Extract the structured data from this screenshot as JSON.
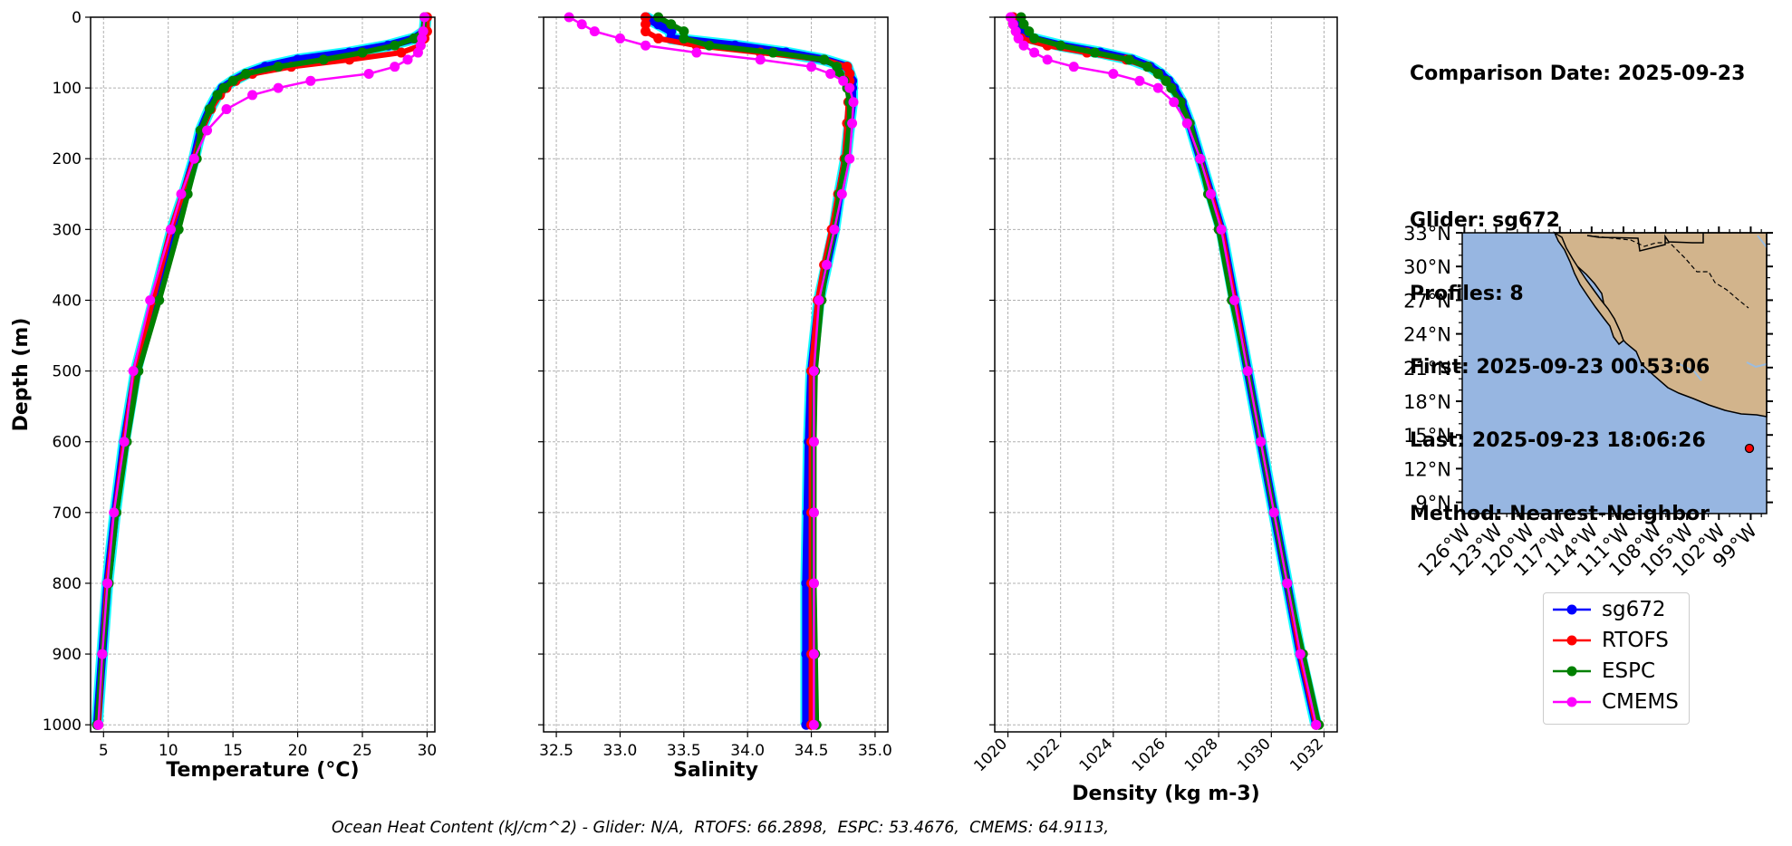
{
  "info": {
    "comparison_date": "Comparison Date: 2025-09-23",
    "glider": "Glider: sg672",
    "profiles": "Profiles: 8",
    "first": "First: 2025-09-23 00:53:06",
    "last": "Last: 2025-09-23 18:06:26",
    "method": "Method: Nearest-Neighbor"
  },
  "footer": "Ocean Heat Content (kJ/cm^2) - Glider: N/A,  RTOFS: 66.2898,  ESPC: 53.4676,  CMEMS: 64.9113,",
  "colors": {
    "sg672": "#0000ff",
    "RTOFS": "#ff0000",
    "ESPC": "#008000",
    "CMEMS": "#ff00ff",
    "glider_cyan": "#00ffff",
    "ocean": "#97b6e1",
    "land": "#d2b48c"
  },
  "map": {
    "lat_labels": [
      "33°N",
      "30°N",
      "27°N",
      "24°N",
      "21°N",
      "18°N",
      "15°N",
      "12°N",
      "9°N"
    ],
    "lon_labels": [
      "126°W",
      "123°W",
      "120°W",
      "117°W",
      "114°W",
      "111°W",
      "108°W",
      "105°W",
      "102°W",
      "99°W"
    ],
    "lat_range": [
      8,
      33
    ],
    "lon_range": [
      -126.2,
      -97.5
    ],
    "glider_position": {
      "lon": -99.2,
      "lat": 14.2
    }
  },
  "chart_data": [
    {
      "type": "line",
      "xlabel": "Temperature (°C)",
      "ylabel": "Depth (m)",
      "xlim": [
        4,
        30.6
      ],
      "ylim": [
        1010,
        0
      ],
      "xticks": [
        "5",
        "10",
        "15",
        "20",
        "25",
        "30"
      ],
      "yticks": [
        "0",
        "100",
        "200",
        "300",
        "400",
        "500",
        "600",
        "700",
        "800",
        "900",
        "1000"
      ],
      "grid": true,
      "depth": [
        0,
        20,
        30,
        40,
        50,
        60,
        70,
        80,
        90,
        100,
        110,
        130,
        160,
        200,
        250,
        300,
        400,
        500,
        600,
        700,
        800,
        900,
        1000
      ],
      "series": [
        {
          "name": "sg672",
          "values": [
            29.9,
            29.8,
            29.0,
            27.0,
            24.0,
            20.0,
            17.5,
            16.0,
            15.0,
            14.2,
            13.8,
            13.2,
            12.5,
            12.0,
            11.2,
            10.3,
            8.9,
            7.5,
            6.6,
            5.9,
            5.3,
            4.9,
            4.5
          ]
        },
        {
          "name": "RTOFS",
          "values": [
            30.0,
            30.0,
            29.8,
            29.5,
            28.0,
            24.0,
            19.5,
            16.5,
            15.2,
            14.5,
            14.0,
            13.3,
            12.6,
            12.0,
            11.1,
            10.2,
            8.8,
            7.4,
            6.6,
            5.9,
            5.3,
            4.9,
            4.6
          ]
        },
        {
          "name": "ESPC",
          "values": [
            29.8,
            29.7,
            29.0,
            27.5,
            25.0,
            22.0,
            18.5,
            16.0,
            15.0,
            14.3,
            13.8,
            13.2,
            12.5,
            12.2,
            11.5,
            10.8,
            9.3,
            7.7,
            6.8,
            6.0,
            5.4,
            4.9,
            4.5
          ]
        },
        {
          "name": "CMEMS",
          "values": [
            29.8,
            29.7,
            29.6,
            29.5,
            29.3,
            28.5,
            27.5,
            25.5,
            21.0,
            18.5,
            16.5,
            14.5,
            13.0,
            12.0,
            11.0,
            10.2,
            8.6,
            7.3,
            6.6,
            5.8,
            5.3,
            4.9,
            4.6
          ]
        }
      ]
    },
    {
      "type": "line",
      "xlabel": "Salinity",
      "ylabel": "",
      "xlim": [
        32.4,
        35.1
      ],
      "ylim": [
        1010,
        0
      ],
      "xticks": [
        "32.5",
        "33.0",
        "33.5",
        "34.0",
        "34.5",
        "35.0"
      ],
      "yticks": [
        "0",
        "100",
        "200",
        "300",
        "400",
        "500",
        "600",
        "700",
        "800",
        "900",
        "1000"
      ],
      "grid": true,
      "depth": [
        0,
        10,
        20,
        30,
        40,
        50,
        60,
        70,
        80,
        90,
        100,
        120,
        150,
        200,
        250,
        300,
        350,
        400,
        500,
        600,
        700,
        800,
        900,
        1000
      ],
      "series": [
        {
          "name": "sg672",
          "values": [
            33.2,
            33.3,
            33.4,
            33.4,
            33.9,
            34.3,
            34.6,
            34.78,
            34.8,
            34.82,
            34.82,
            34.82,
            34.8,
            34.77,
            34.72,
            34.68,
            34.62,
            34.56,
            34.5,
            34.48,
            34.47,
            34.46,
            34.46,
            34.46
          ]
        },
        {
          "name": "RTOFS",
          "values": [
            33.2,
            33.2,
            33.2,
            33.3,
            33.6,
            34.1,
            34.6,
            34.78,
            34.8,
            34.8,
            34.8,
            34.79,
            34.78,
            34.76,
            34.71,
            34.66,
            34.6,
            34.55,
            34.5,
            34.5,
            34.5,
            34.5,
            34.5,
            34.5
          ]
        },
        {
          "name": "ESPC",
          "values": [
            33.3,
            33.4,
            33.5,
            33.5,
            33.7,
            34.2,
            34.6,
            34.7,
            34.72,
            34.76,
            34.78,
            34.8,
            34.8,
            34.77,
            34.72,
            34.68,
            34.62,
            34.58,
            34.53,
            34.52,
            34.52,
            34.52,
            34.53,
            34.54
          ]
        },
        {
          "name": "CMEMS",
          "values": [
            32.6,
            32.7,
            32.8,
            33.0,
            33.2,
            33.6,
            34.1,
            34.5,
            34.65,
            34.75,
            34.8,
            34.83,
            34.82,
            34.8,
            34.74,
            34.68,
            34.62,
            34.56,
            34.52,
            34.52,
            34.52,
            34.52,
            34.52,
            34.52
          ]
        }
      ]
    },
    {
      "type": "line",
      "xlabel": "Density (kg m-3)",
      "ylabel": "",
      "xlim": [
        1019.5,
        1032.5
      ],
      "ylim": [
        1010,
        0
      ],
      "xticks": [
        "1020",
        "1022",
        "1024",
        "1026",
        "1028",
        "1030",
        "1032"
      ],
      "yticks": [
        "0",
        "100",
        "200",
        "300",
        "400",
        "500",
        "600",
        "700",
        "800",
        "900",
        "1000"
      ],
      "grid": true,
      "depth": [
        0,
        10,
        20,
        30,
        40,
        50,
        60,
        70,
        80,
        90,
        100,
        120,
        150,
        200,
        250,
        300,
        400,
        500,
        600,
        700,
        800,
        900,
        1000
      ],
      "series": [
        {
          "name": "sg672",
          "values": [
            1020.2,
            1020.3,
            1020.5,
            1020.9,
            1022.0,
            1023.5,
            1024.7,
            1025.4,
            1025.8,
            1026.1,
            1026.3,
            1026.6,
            1026.9,
            1027.3,
            1027.7,
            1028.1,
            1028.6,
            1029.1,
            1029.6,
            1030.1,
            1030.6,
            1031.1,
            1031.7
          ]
        },
        {
          "name": "RTOFS",
          "values": [
            1020.2,
            1020.2,
            1020.3,
            1020.5,
            1021.5,
            1023.0,
            1024.5,
            1025.3,
            1025.7,
            1026.0,
            1026.2,
            1026.55,
            1026.9,
            1027.3,
            1027.7,
            1028.1,
            1028.6,
            1029.1,
            1029.6,
            1030.1,
            1030.6,
            1031.1,
            1031.7
          ]
        },
        {
          "name": "ESPC",
          "values": [
            1020.5,
            1020.6,
            1020.8,
            1021.0,
            1022.0,
            1023.3,
            1024.6,
            1025.3,
            1025.7,
            1026.0,
            1026.2,
            1026.55,
            1026.9,
            1027.3,
            1027.6,
            1028.0,
            1028.5,
            1029.1,
            1029.6,
            1030.1,
            1030.6,
            1031.2,
            1031.8
          ]
        },
        {
          "name": "CMEMS",
          "values": [
            1020.1,
            1020.2,
            1020.3,
            1020.4,
            1020.6,
            1021.0,
            1021.5,
            1022.5,
            1024.0,
            1025.0,
            1025.7,
            1026.3,
            1026.8,
            1027.3,
            1027.7,
            1028.1,
            1028.6,
            1029.1,
            1029.6,
            1030.1,
            1030.6,
            1031.1,
            1031.7
          ]
        }
      ]
    }
  ],
  "legend": [
    {
      "label": "sg672",
      "color": "#0000ff"
    },
    {
      "label": "RTOFS",
      "color": "#ff0000"
    },
    {
      "label": "ESPC",
      "color": "#008000"
    },
    {
      "label": "CMEMS",
      "color": "#ff00ff"
    }
  ]
}
